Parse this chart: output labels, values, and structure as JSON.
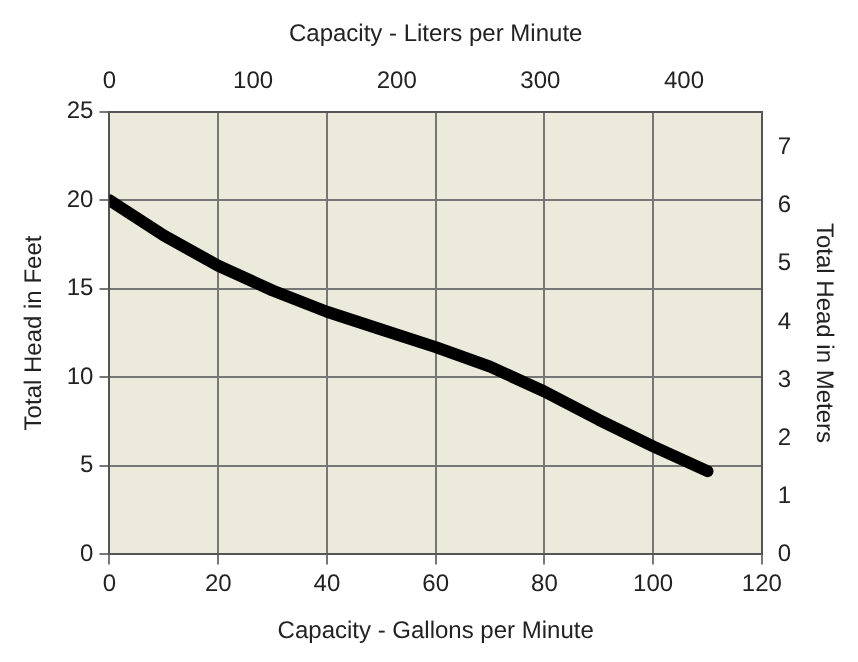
{
  "chart_data": {
    "type": "line",
    "xlabel": "Capacity - Gallons per Minute",
    "x2label": "Capacity - Liters per Minute",
    "ylabel": "Total Head in Feet",
    "y2label": "Total Head in Meters",
    "xlim": [
      0,
      120
    ],
    "xticks": [
      0,
      20,
      40,
      60,
      80,
      100,
      120
    ],
    "x2lim": [
      0,
      454.2
    ],
    "x2ticks": [
      0,
      100,
      200,
      300,
      400
    ],
    "ylim": [
      0,
      25
    ],
    "yticks": [
      0,
      5,
      10,
      15,
      20,
      25
    ],
    "y2lim": [
      0,
      7.62
    ],
    "y2ticks": [
      0,
      1,
      2,
      3,
      4,
      5,
      6,
      7
    ],
    "grid": true,
    "legend": false,
    "marker": "none",
    "line_style": "solid",
    "x": [
      0,
      10,
      20,
      30,
      40,
      50,
      60,
      70,
      80,
      90,
      100,
      110
    ],
    "series": [
      {
        "color": "#000000",
        "values": [
          20,
          18,
          16.3,
          14.9,
          13.7,
          12.7,
          11.7,
          10.6,
          9.2,
          7.6,
          6.1,
          4.7
        ]
      }
    ]
  }
}
